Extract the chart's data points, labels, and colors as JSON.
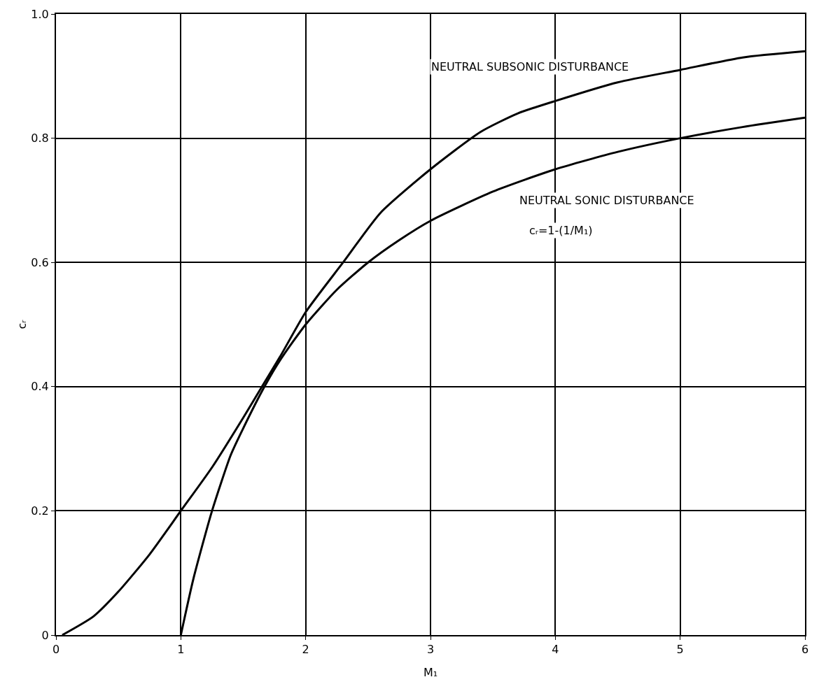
{
  "chart_data": {
    "type": "line",
    "xlabel": "M₁",
    "ylabel": "cᵣ",
    "xlim": [
      0,
      6
    ],
    "xticks": [
      0,
      1,
      2,
      3,
      4,
      5,
      6
    ],
    "ylim": [
      0,
      1.0
    ],
    "yticks": [
      0,
      0.2,
      0.4,
      0.6,
      0.8,
      {
        "value": 1.0,
        "label": "1.0"
      }
    ],
    "grid": true,
    "legend": false,
    "marker": "none",
    "line_style": "solid",
    "series": [
      {
        "name": "NEUTRAL SUBSONIC DISTURBANCE",
        "color": "#000000",
        "x": [
          0.05,
          0.3,
          0.5,
          0.75,
          1,
          1.25,
          1.5,
          1.65,
          1.8,
          2,
          2.3,
          2.6,
          3,
          3.4,
          3.7,
          4,
          4.5,
          5,
          5.5,
          6
        ],
        "values": [
          0,
          0.03,
          0.07,
          0.13,
          0.2,
          0.27,
          0.35,
          0.4,
          0.45,
          0.52,
          0.6,
          0.68,
          0.75,
          0.81,
          0.84,
          0.86,
          0.89,
          0.91,
          0.93,
          0.94
        ]
      },
      {
        "name": "NEUTRAL SONIC DISTURBANCE",
        "color": "#000000",
        "x": [
          1,
          1.1,
          1.25,
          1.4,
          1.5,
          1.67,
          1.8,
          2,
          2.25,
          2.5,
          2.75,
          3,
          3.5,
          4,
          4.5,
          5,
          5.5,
          6
        ],
        "values": [
          0,
          0.09,
          0.2,
          0.29,
          0.333,
          0.4,
          0.444,
          0.5,
          0.556,
          0.6,
          0.636,
          0.667,
          0.714,
          0.75,
          0.778,
          0.8,
          0.818,
          0.833
        ]
      }
    ],
    "annotations": [
      "cᵣ=1-(1/M₁)"
    ]
  }
}
